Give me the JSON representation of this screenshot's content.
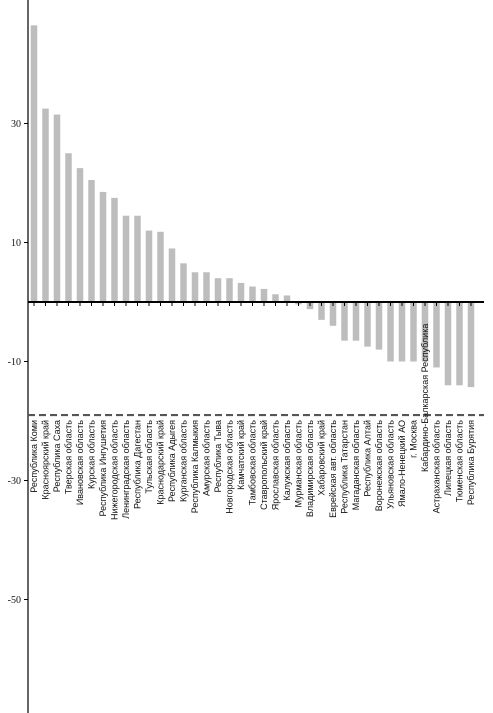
{
  "chart_data": {
    "type": "bar",
    "title": "",
    "xlabel": "",
    "ylabel": "",
    "ylim": [
      -68,
      50
    ],
    "yticks": [
      30,
      10,
      -10,
      -30,
      -50
    ],
    "reference_line": -19,
    "grid": false,
    "legend": "none",
    "colors": {
      "bar": "#bdbdbd",
      "axis": "#000000",
      "reference_line": "#555555"
    },
    "categories": [
      "Республика Коми",
      "Красноярский край",
      "Республика Саха",
      "Тверская область",
      "Ивановская область",
      "Курская область",
      "Республика Ингушетия",
      "Нижегородская область",
      "Ленинградская область",
      "Республика Дагестан",
      "Тульская область",
      "Краснодарский край",
      "Республика Адыгея",
      "Курганская область",
      "Республика Калмыкия",
      "Амурская область",
      "Республика Тыва",
      "Новгородская область",
      "Камчатский край",
      "Тамбовская область",
      "Ставропольский край",
      "Ярославская область",
      "Калужская область",
      "Мурманская область",
      "Владимирская область",
      "Хабаровский край",
      "Еврейская авт. область",
      "Республика Татарстан",
      "Магаданская область",
      "Республика Алтай",
      "Воронежская область",
      "Ульяновская область",
      "Ямало-Ненецкий АО",
      "г. Москва",
      "Кабардино-Балкарская Республика",
      "Астраханская область",
      "Липецкая область",
      "Тюменская область",
      "Республика Бурятия"
    ],
    "values": [
      46.5,
      32.5,
      31.5,
      25,
      22.5,
      20.5,
      18.5,
      17.5,
      14.5,
      14.5,
      12,
      11.8,
      9,
      6.5,
      5,
      5,
      4,
      4,
      3.2,
      2.6,
      2.2,
      1.3,
      1.1,
      -0.4,
      -1.2,
      -3,
      -4,
      -6.5,
      -6.5,
      -7.5,
      -8,
      -10,
      -10,
      -10,
      -10,
      -11,
      -14,
      -14,
      -14.3
    ]
  }
}
